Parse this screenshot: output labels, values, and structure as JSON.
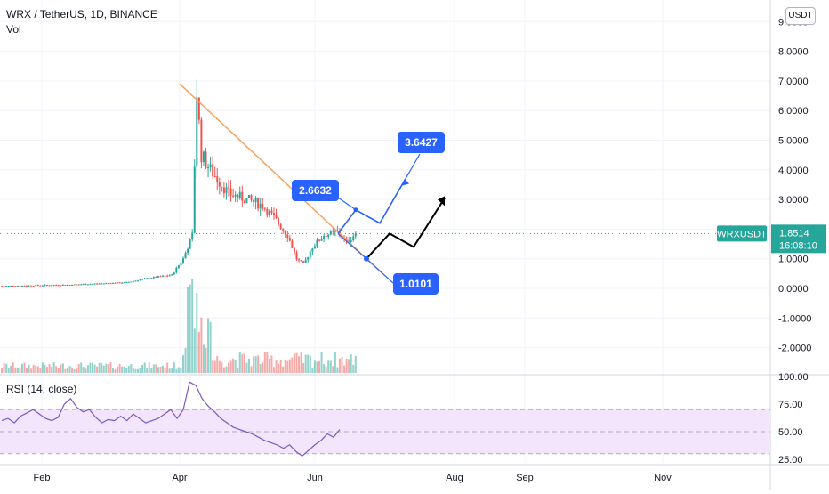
{
  "header": {
    "title": "WRX / TetherUS, 1D, BINANCE",
    "vol_label": "Vol",
    "currency_button": "USDT",
    "rsi_label": "RSI (14, close)"
  },
  "colors": {
    "up": "#26a69a",
    "down": "#ef5350",
    "trendline": "#f7a35c",
    "path_blue": "#2962ff",
    "path_black": "#000000",
    "rsi_line": "#7e57c2",
    "rsi_band": "#f3e5fb",
    "last_price": "#26a69a",
    "callout": "#2962ff"
  },
  "chart_data": [
    {
      "type": "candlestick",
      "title": "WRX / TetherUS, 1D, BINANCE",
      "x_axis": {
        "ticks": [
          "Feb",
          "Apr",
          "Jun",
          "Aug",
          "Sep",
          "Nov"
        ]
      },
      "y_axis": {
        "ticks": [
          "-2.0000",
          "-1.0000",
          "0.0000",
          "1.0000",
          "2.0000",
          "3.0000",
          "4.0000",
          "5.0000",
          "6.0000",
          "7.0000",
          "8.0000",
          "9.0000"
        ],
        "ylim": [
          -2.5,
          9.2
        ],
        "scale": "linear"
      },
      "last_price": {
        "symbol": "WRXUSDT",
        "value": "1.8514",
        "countdown": "16:08:10"
      },
      "series_close_approx": [
        {
          "date": "Jan",
          "close": 0.1
        },
        {
          "date": "Feb",
          "close": 0.12
        },
        {
          "date": "Mar",
          "close": 0.5
        },
        {
          "date": "late Mar",
          "close": 1.8
        },
        {
          "date": "Apr",
          "close": 6.6
        },
        {
          "date": "mid Apr",
          "close": 3.5
        },
        {
          "date": "May",
          "close": 2.5
        },
        {
          "date": "late May",
          "close": 1.0
        },
        {
          "date": "Jun",
          "close": 1.85
        }
      ],
      "annotations": [
        {
          "type": "trendline",
          "from": {
            "date": "Apr",
            "price": 6.9
          },
          "to": {
            "date": "late Jun",
            "price": 0.5
          }
        },
        {
          "type": "callout",
          "text": "3.6427",
          "value": 3.6427
        },
        {
          "type": "callout",
          "text": "2.6632",
          "value": 2.6632
        },
        {
          "type": "callout",
          "text": "1.0101",
          "value": 1.0101
        },
        {
          "type": "projection",
          "series": "blue",
          "points": [
            1.85,
            2.65,
            2.2,
            3.65
          ]
        },
        {
          "type": "projection",
          "series": "black",
          "points": [
            1.0,
            1.85,
            1.4,
            3.05
          ]
        }
      ]
    },
    {
      "type": "line",
      "title": "RSI (14, close)",
      "y_axis": {
        "ticks": [
          "25.00",
          "50.00",
          "75.00",
          "100.00"
        ],
        "ylim": [
          22,
          100
        ]
      },
      "band": [
        30,
        70
      ],
      "midline": 50,
      "values_approx": [
        60,
        62,
        58,
        64,
        67,
        70,
        66,
        62,
        60,
        63,
        75,
        80,
        72,
        68,
        70,
        63,
        58,
        61,
        60,
        64,
        60,
        66,
        62,
        58,
        60,
        62,
        66,
        70,
        62,
        70,
        95,
        92,
        80,
        73,
        68,
        62,
        58,
        54,
        52,
        50,
        48,
        45,
        42,
        40,
        38,
        35,
        38,
        32,
        28,
        33,
        38,
        42,
        48,
        45,
        52
      ]
    }
  ]
}
